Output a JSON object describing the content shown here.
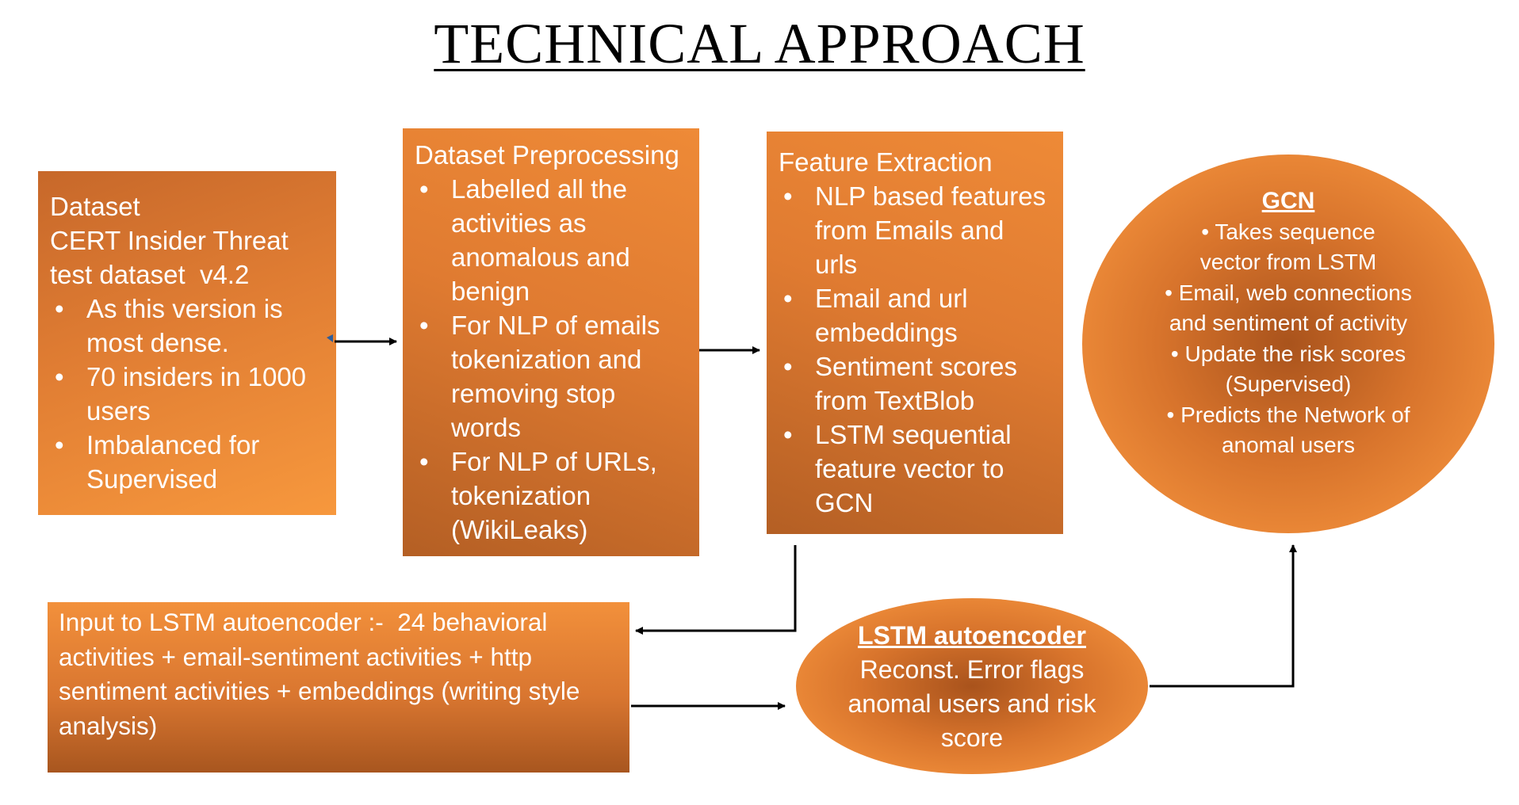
{
  "title": "TECHNICAL APPROACH",
  "dataset": {
    "heading_lines": [
      "Dataset",
      "CERT Insider Threat",
      "test dataset  v4.2"
    ],
    "bullets": [
      "As this version is most dense.",
      "70 insiders in 1000 users",
      "Imbalanced for Supervised"
    ]
  },
  "preprocessing": {
    "heading": "Dataset Preprocessing",
    "bullets": [
      "Labelled all the activities as anomalous and benign",
      "For NLP of emails tokenization and removing stop words",
      "For NLP of URLs, tokenization (WikiLeaks)"
    ]
  },
  "features": {
    "heading": "Feature Extraction",
    "bullets": [
      "NLP based features from Emails and urls",
      "Email and url embeddings",
      "Sentiment scores from TextBlob",
      "LSTM sequential feature vector to GCN"
    ]
  },
  "gcn": {
    "heading": "GCN",
    "bullets": [
      "Takes sequence vector from LSTM",
      "Email, web connections and sentiment of activity",
      "Update the risk scores (Supervised)",
      "Predicts the Network of anomal users"
    ]
  },
  "lstm_input": {
    "text": "Input to LSTM autoencoder :-  24 behavioral activities + email-sentiment activities + http sentiment activities + embeddings (writing style analysis)"
  },
  "lstm_autoencoder": {
    "heading": "LSTM autoencoder",
    "text": "Reconst. Error flags anomal users and risk score"
  },
  "colors": {
    "box_orange": "#e07d33",
    "box_light": "#f7983d",
    "box_dark": "#b45f24",
    "arrow": "#000000",
    "text": "#ffffff"
  }
}
